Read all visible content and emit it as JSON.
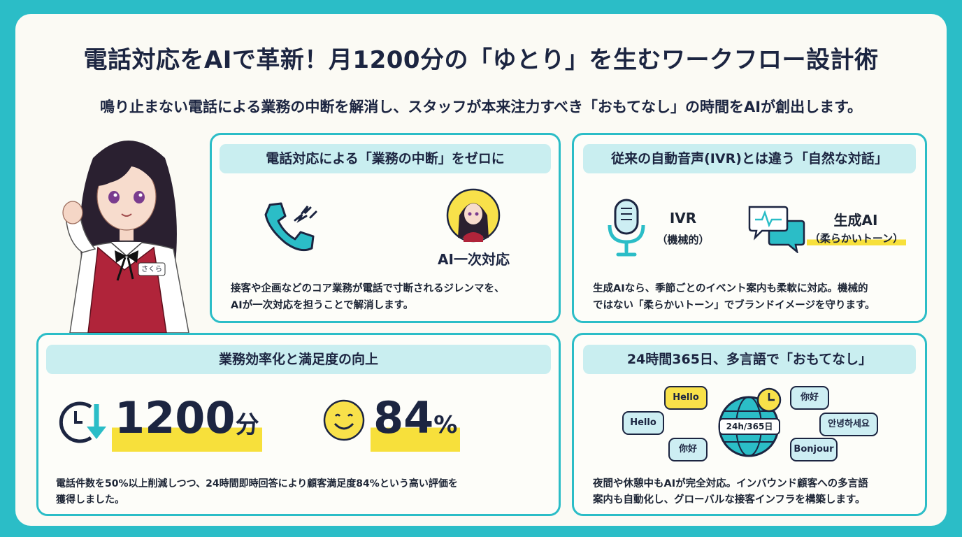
{
  "header": {
    "title": "電話対応をAIで革新！月1200分の「ゆとり」を生むワークフロー設計術",
    "subtitle": "鳴り止まない電話による業務の中断を解消し、スタッフが本来注力すべき「おもてなし」の時間をAIが創出します。"
  },
  "mascot": {
    "name_tag": "さくら"
  },
  "card_interrupt": {
    "heading": "電話対応による「業務の中断」をゼロに",
    "ai_label": "AI一次対応",
    "description_line1": "接客や企画などのコア業務が電話で寸断されるジレンマを、",
    "description_line2": "AIが一次対応を担うことで解消します。"
  },
  "card_ivr": {
    "heading": "従来の自動音声(IVR)とは違う「自然な対話」",
    "ivr_title": "IVR",
    "ivr_sub": "（機械的）",
    "gen_title": "生成AI",
    "gen_sub": "（柔らかいトーン）",
    "description_line1": "生成AIなら、季節ごとのイベント案内も柔軟に対応。機械的",
    "description_line2": "ではない「柔らかいトーン」でブランドイメージを守ります。"
  },
  "card_efficiency": {
    "heading": "業務効率化と満足度の向上",
    "minutes_value": "1200",
    "minutes_unit": "分",
    "satisfaction_value": "84",
    "satisfaction_unit": "%",
    "description_line1": "電話件数を50%以上削減しつつ、24時間即時回答により顧客満足度84%という高い評価を",
    "description_line2": "獲得しました。"
  },
  "card_multilingual": {
    "heading": "24時間365日、多言語で「おもてなし」",
    "globe_label": "24h/365日",
    "bubbles": [
      "Hello",
      "Hello",
      "你好",
      "你好",
      "안녕하세요",
      "Bonjour"
    ],
    "description_line1": "夜間や休憩中もAIが完全対応。インバウンド顧客への多言語",
    "description_line2": "案内も自動化し、グローバルな接客インフラを構築します。"
  },
  "colors": {
    "teal": "#2bbdc7",
    "navy": "#1c2541",
    "highlight": "#f7e03b",
    "head_bg": "#c9eef0"
  }
}
